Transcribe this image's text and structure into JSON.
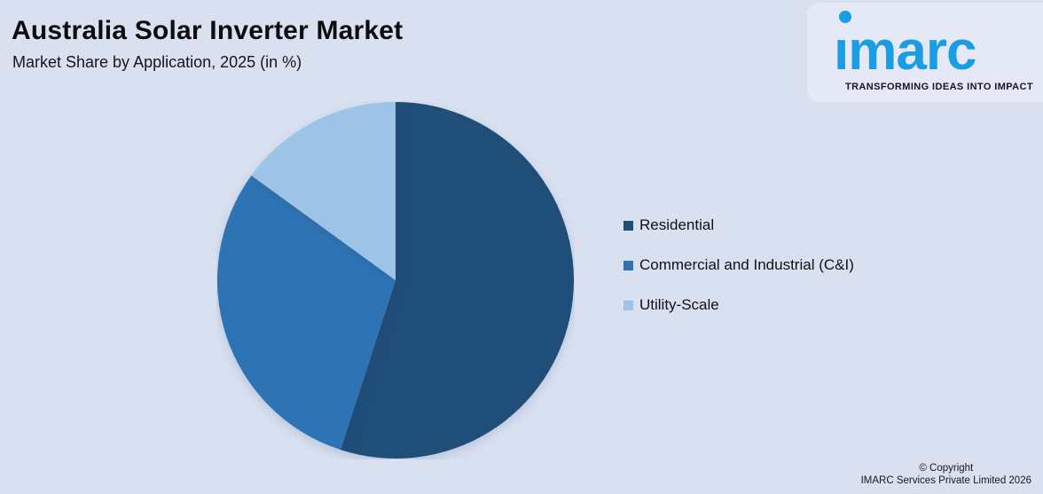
{
  "header": {
    "title": "Australia Solar Inverter Market",
    "subtitle": "Market Share by Application, 2025 (in %)"
  },
  "logo": {
    "wordmark": "imarc",
    "tagline": "TRANSFORMING IDEAS INTO IMPACT",
    "brand_color": "#1B9DE6"
  },
  "footer": {
    "copyright_line1": "© Copyright",
    "copyright_line2": "IMARC Services Private Limited 2026"
  },
  "colors": {
    "page_background": "#D9E1F1",
    "logo_card_background": "#E4E9F5",
    "heading_text": "#0d0d0f"
  },
  "chart_data": {
    "type": "pie",
    "title": "Australia Solar Inverter Market",
    "subtitle": "Market Share by Application, 2025 (in %)",
    "unit": "%",
    "start_angle_deg": 0,
    "direction": "clockwise",
    "legend_position": "right",
    "segments": [
      {
        "label": "Residential",
        "value": 55,
        "color": "#1F4E79"
      },
      {
        "label": "Commercial and Industrial (C&I)",
        "value": 30,
        "color": "#2E74B5"
      },
      {
        "label": "Utility-Scale",
        "value": 15,
        "color": "#9DC3E6"
      }
    ]
  }
}
